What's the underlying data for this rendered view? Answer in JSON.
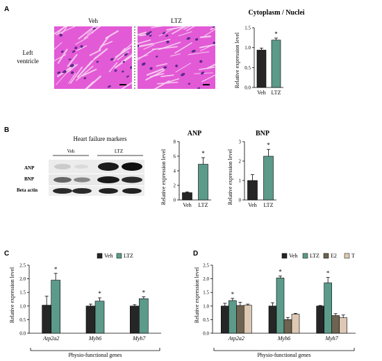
{
  "colors": {
    "veh": "#262626",
    "ltz": "#5c9a8a",
    "e2": "#6e6350",
    "t": "#ddc8b4",
    "he_bg": "#e35ad6",
    "he_nuc": "#5a2a8a"
  },
  "panel_a": {
    "letter": "A",
    "image_labels": [
      "Veh",
      "LTZ"
    ],
    "row_label_line1": "Left",
    "row_label_line2": "ventricle",
    "chart_title": "Cytoplasm / Nuclei",
    "ylabel": "Relative expression level",
    "star": "*"
  },
  "panel_b": {
    "letter": "B",
    "blot_title": "Heart failure markers",
    "lane_groups": [
      "Veh",
      "LTZ"
    ],
    "row_labels": [
      "ANP",
      "BNP",
      "Beta actin"
    ],
    "anp_title": "ANP",
    "bnp_title": "BNP",
    "ylabel": "Relative expression level",
    "star": "*"
  },
  "panel_c": {
    "letter": "C",
    "ylabel": "Relative expression level",
    "bracket_label": "Physio-functional genes",
    "star": "*"
  },
  "panel_d": {
    "letter": "D",
    "ylabel": "Relative expression level",
    "bracket_label": "Physio-functional genes",
    "star": "*"
  },
  "chart_data": [
    {
      "id": "a",
      "type": "bar",
      "title": "Cytoplasm / Nuclei",
      "ylabel": "Relative expression level",
      "categories": [
        "Veh",
        "LTZ"
      ],
      "values": [
        0.94,
        1.19
      ],
      "errors": [
        0.05,
        0.05
      ],
      "significant": [
        false,
        true
      ],
      "ylim": [
        0,
        1.5
      ],
      "yticks": [
        "0.0",
        "0.5",
        "1.0",
        "1.5"
      ]
    },
    {
      "id": "anp",
      "type": "bar",
      "title": "ANP",
      "ylabel": "Relative expression level",
      "categories": [
        "Veh",
        "LTZ"
      ],
      "values": [
        1.0,
        4.9
      ],
      "errors": [
        0.1,
        0.9
      ],
      "significant": [
        false,
        true
      ],
      "ylim": [
        0,
        8
      ],
      "yticks": [
        "0",
        "2",
        "4",
        "6",
        "8"
      ]
    },
    {
      "id": "bnp",
      "type": "bar",
      "title": "BNP",
      "ylabel": "Relative expression level",
      "categories": [
        "Veh",
        "LTZ"
      ],
      "values": [
        1.0,
        2.25
      ],
      "errors": [
        0.3,
        0.35
      ],
      "significant": [
        false,
        true
      ],
      "ylim": [
        0,
        3
      ],
      "yticks": [
        "0",
        "1",
        "2",
        "3"
      ]
    },
    {
      "id": "c",
      "type": "bar",
      "ylabel": "Relative expression level",
      "categories": [
        "Atp2a2",
        "Myh6",
        "Myh7"
      ],
      "ylim": [
        0,
        2.5
      ],
      "yticks": [
        "0.0",
        "0.5",
        "1.0",
        "1.5",
        "2.0",
        "2.5"
      ],
      "legend": "top",
      "series": [
        {
          "name": "Veh",
          "values": [
            1.03,
            1.0,
            1.0
          ],
          "errors": [
            0.33,
            0.07,
            0.05
          ],
          "significant": [
            false,
            false,
            false
          ]
        },
        {
          "name": "LTZ",
          "values": [
            1.95,
            1.18,
            1.27
          ],
          "errors": [
            0.25,
            0.12,
            0.07
          ],
          "significant": [
            true,
            true,
            true
          ]
        }
      ]
    },
    {
      "id": "d",
      "type": "bar",
      "ylabel": "Relative expression level",
      "categories": [
        "Atp2a2",
        "Myh6",
        "Myh7"
      ],
      "ylim": [
        0,
        2.5
      ],
      "yticks": [
        "0.0",
        "0.5",
        "1.0",
        "1.5",
        "2.0",
        "2.5"
      ],
      "legend": "top",
      "series": [
        {
          "name": "Veh",
          "values": [
            1.0,
            1.0,
            1.0
          ],
          "errors": [
            0.1,
            0.12,
            0.02
          ],
          "significant": [
            false,
            false,
            false
          ]
        },
        {
          "name": "LTZ",
          "values": [
            1.2,
            2.03,
            1.85
          ],
          "errors": [
            0.08,
            0.07,
            0.2
          ],
          "significant": [
            true,
            true,
            true
          ]
        },
        {
          "name": "E2",
          "values": [
            1.02,
            0.5,
            0.65
          ],
          "errors": [
            0.12,
            0.08,
            0.07
          ],
          "significant": [
            false,
            false,
            false
          ]
        },
        {
          "name": "T",
          "values": [
            1.03,
            0.7,
            0.57
          ],
          "errors": [
            0.04,
            0.03,
            0.1
          ],
          "significant": [
            false,
            false,
            false
          ]
        }
      ]
    }
  ]
}
